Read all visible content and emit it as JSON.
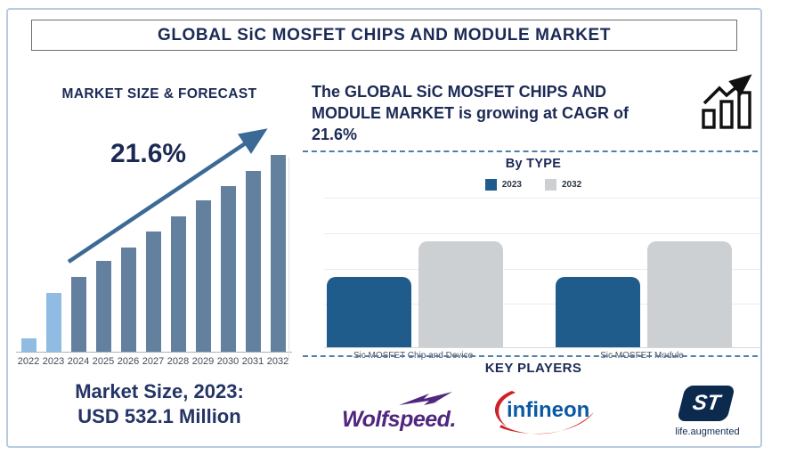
{
  "title": "GLOBAL SiC MOSFET CHIPS AND MODULE MARKET",
  "left_panel": {
    "heading": "MARKET SIZE & FORECAST",
    "cagr_label": "21.6%",
    "market_size_line1": "Market Size, 2023:",
    "market_size_line2": "USD 532.1 Million"
  },
  "right_panel": {
    "growth_text": "The GLOBAL SiC MOSFET CHIPS AND MODULE MARKET is growing at CAGR of 21.6%",
    "by_type_heading": "By TYPE",
    "key_players_heading": "KEY PLAYERS",
    "players": [
      {
        "name": "Wolfspeed."
      },
      {
        "name": "infineon"
      },
      {
        "name": "ST",
        "tagline": "life.augmented"
      }
    ]
  },
  "chart_data": [
    {
      "type": "bar",
      "title": "MARKET SIZE & FORECAST",
      "categories": [
        "2022",
        "2023",
        "2024",
        "2025",
        "2026",
        "2027",
        "2028",
        "2029",
        "2030",
        "2031",
        "2032"
      ],
      "values_relative": [
        7,
        30,
        38,
        46,
        53,
        61,
        69,
        77,
        84,
        92,
        100
      ],
      "annotation": "21.6% CAGR growth arrow",
      "known_points": {
        "2023": "USD 532.1 Million"
      },
      "ylabel": "",
      "xlabel": "",
      "grid": false,
      "bar_color": "#64809f",
      "highlight_years": [
        "2022",
        "2023"
      ],
      "highlight_color": "#90bce4",
      "arrow_color": "#3c6a96"
    },
    {
      "type": "bar",
      "title": "By TYPE",
      "categories": [
        "Sic MOSFET Chip and Device",
        "Sic MOSFET Module"
      ],
      "series": [
        {
          "name": "2023",
          "color": "#1f5c8c",
          "values_relative": [
            66,
            66
          ]
        },
        {
          "name": "2032",
          "color": "#cdd0d2",
          "values_relative": [
            100,
            100
          ]
        }
      ],
      "legend_position": "top",
      "grid": true
    }
  ],
  "colors": {
    "navy_text": "#1b2a55",
    "frame_border": "#b9cbe0",
    "dashed_line": "#4f7fa6",
    "wolfspeed_purple": "#50267f",
    "infineon_blue": "#0b59a5",
    "infineon_red": "#cf2127",
    "st_navy": "#0c2a4e"
  }
}
